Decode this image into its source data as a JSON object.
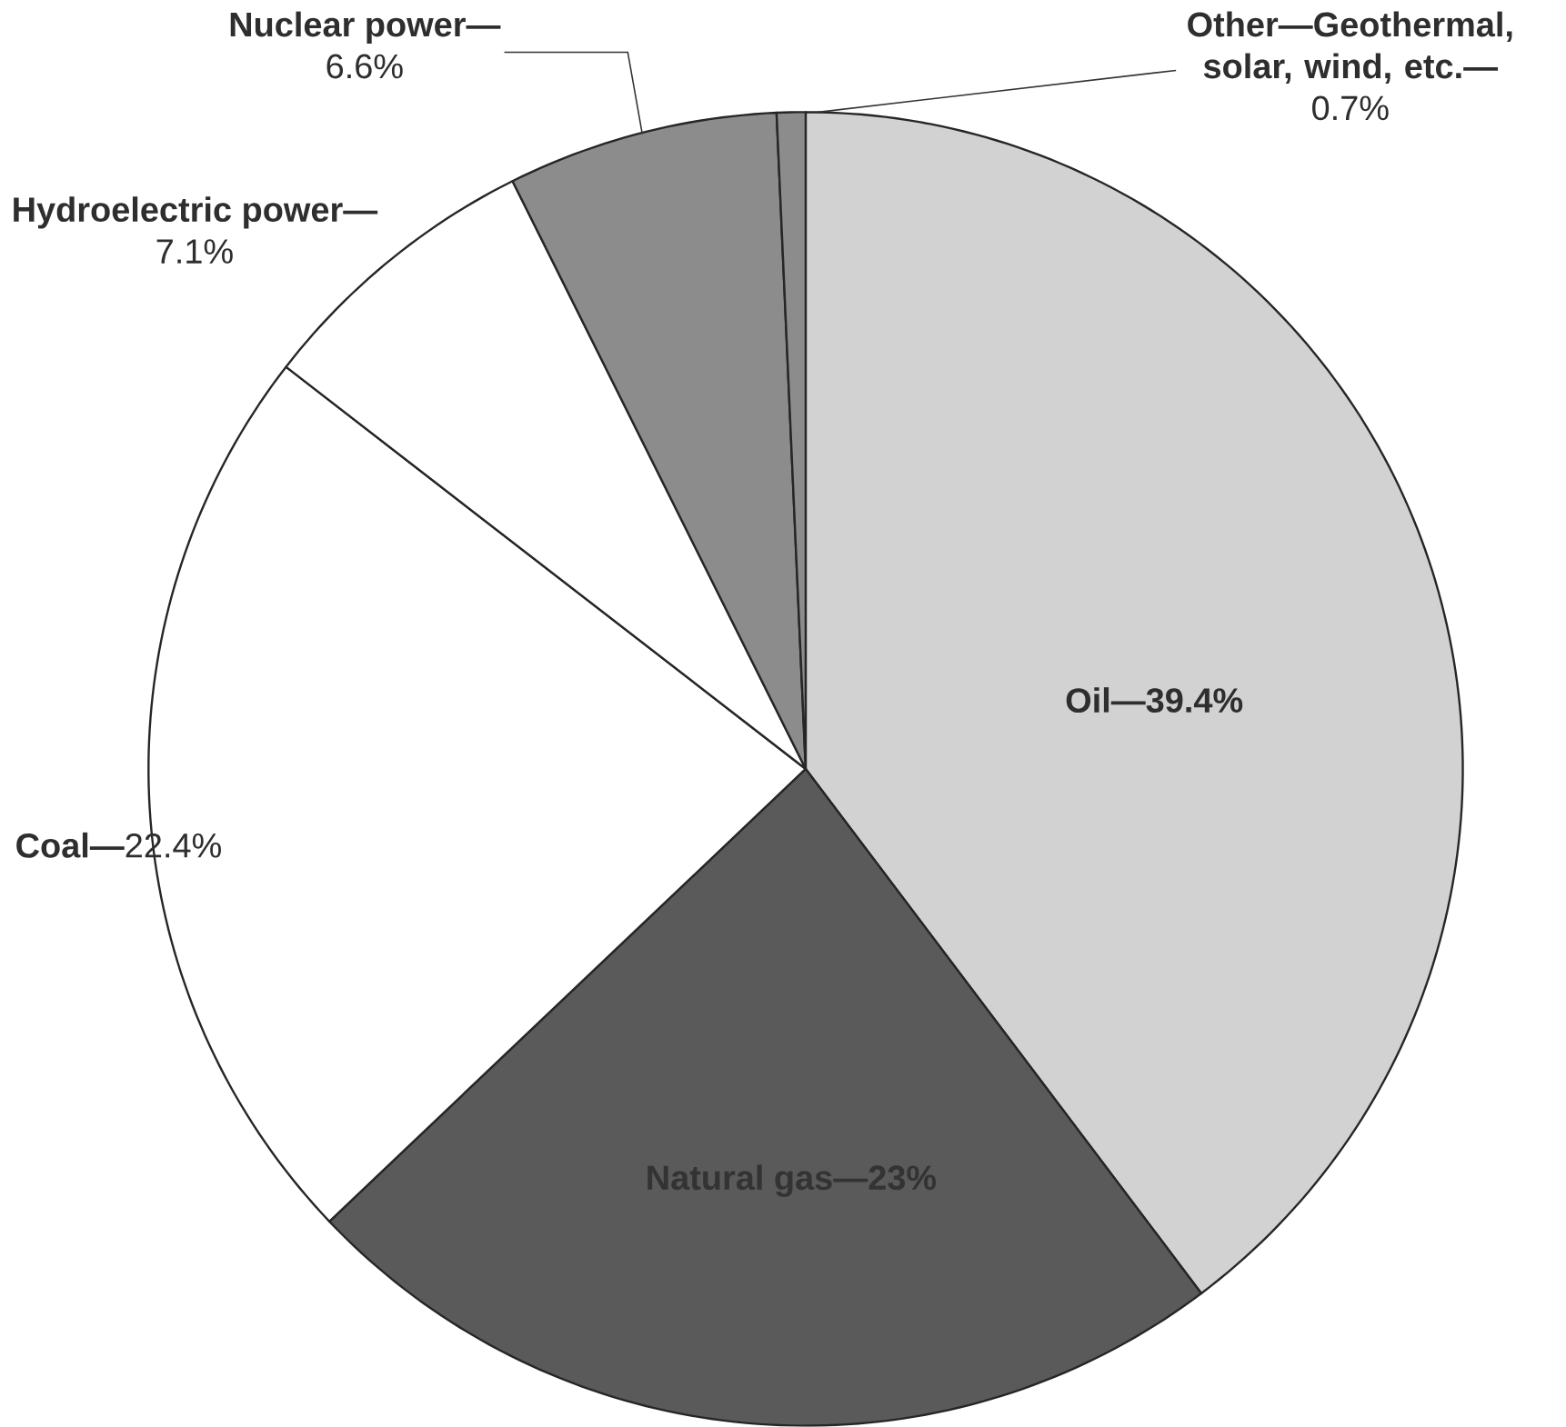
{
  "chart_data": {
    "type": "pie",
    "categories": [
      "Oil—",
      "Natural gas—",
      "Coal—",
      "Hydroelectric power—",
      "Nuclear power—",
      "Other—Geothermal, solar, wind, etc.—"
    ],
    "values": [
      39.4,
      23,
      22.4,
      7.1,
      6.6,
      0.7
    ],
    "value_labels": [
      "39.4%",
      "23%",
      "22.4%",
      "7.1%",
      "6.6%",
      "0.7%"
    ],
    "colors": [
      "#d2d2d2",
      "#5a5a5a",
      "#ffffff",
      "#ffffff",
      "#8c8c8c",
      "#8c8c8c"
    ]
  }
}
